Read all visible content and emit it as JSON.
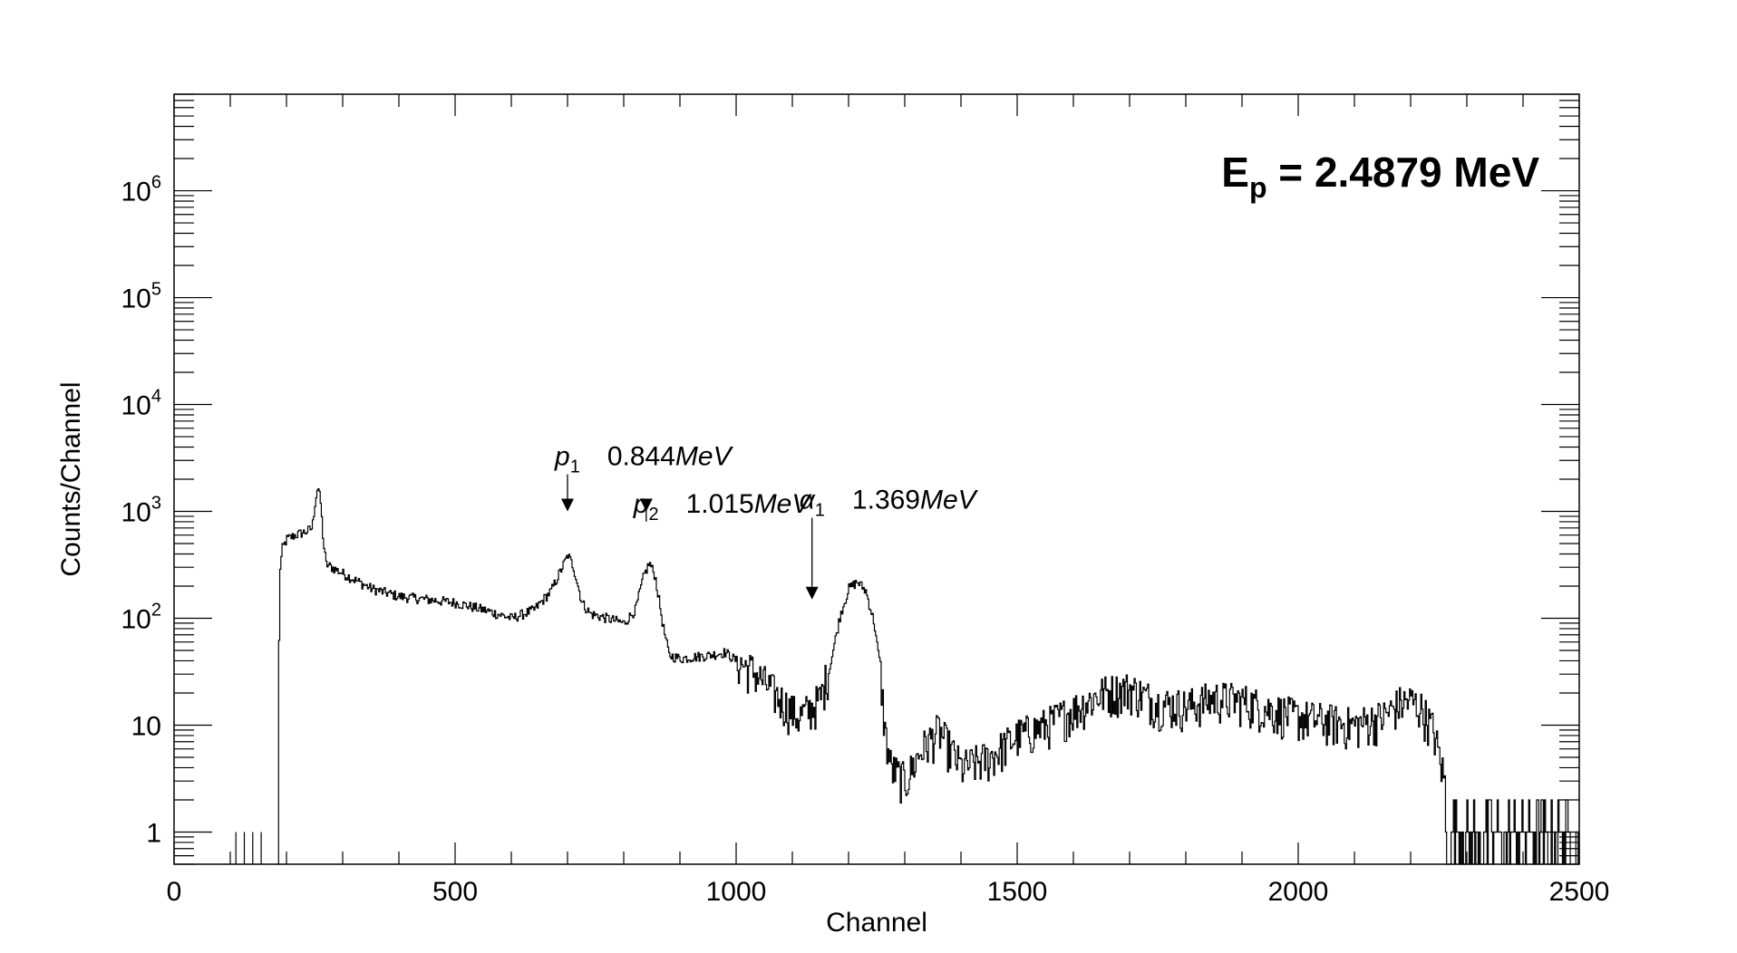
{
  "chart_data": {
    "type": "line",
    "title": "",
    "xlabel": "Channel",
    "ylabel": "Counts/Channel",
    "xlim": [
      0,
      2500
    ],
    "ylim": [
      0.5,
      8000000
    ],
    "y_scale": "log",
    "x_ticks": [
      "0",
      "500",
      "1000",
      "1500",
      "2000",
      "2500"
    ],
    "y_ticks": [
      {
        "base": "1",
        "exp": ""
      },
      {
        "base": "10",
        "exp": ""
      },
      {
        "base": "10",
        "exp": "2"
      },
      {
        "base": "10",
        "exp": "3"
      },
      {
        "base": "10",
        "exp": "4"
      },
      {
        "base": "10",
        "exp": "5"
      },
      {
        "base": "10",
        "exp": "6"
      }
    ],
    "grid": false,
    "beam_label": {
      "main": "E",
      "sub": "p",
      "rest": " = 2.4879 MeV"
    },
    "annotations": [
      {
        "symbol": "p",
        "sub": "1",
        "energy": "0.844",
        "unit": "MeV",
        "x": 700,
        "y_top": 2500,
        "y_tip": 1000
      },
      {
        "symbol": "p",
        "sub": "2",
        "energy": "1.015",
        "unit": "MeV",
        "x": 840,
        "y_top": 900,
        "y_tip": 1000
      },
      {
        "symbol": "α",
        "sub": "1",
        "energy": "1.369",
        "unit": "MeV",
        "x": 1135,
        "y_top": 980,
        "y_tip": 150
      }
    ],
    "series": [
      {
        "values": [
          [
            110,
            1
          ],
          [
            125,
            1
          ],
          [
            140,
            1
          ],
          [
            155,
            1
          ],
          [
            185,
            0.5
          ],
          [
            186,
            60
          ],
          [
            188,
            300
          ],
          [
            192,
            450
          ],
          [
            200,
            550
          ],
          [
            215,
            600
          ],
          [
            235,
            650
          ],
          [
            245,
            700
          ],
          [
            250,
            1200
          ],
          [
            255,
            1750
          ],
          [
            260,
            1200
          ],
          [
            265,
            500
          ],
          [
            270,
            320
          ],
          [
            290,
            280
          ],
          [
            320,
            230
          ],
          [
            350,
            190
          ],
          [
            400,
            160
          ],
          [
            450,
            150
          ],
          [
            500,
            140
          ],
          [
            550,
            120
          ],
          [
            600,
            100
          ],
          [
            640,
            120
          ],
          [
            670,
            180
          ],
          [
            690,
            300
          ],
          [
            700,
            390
          ],
          [
            710,
            300
          ],
          [
            725,
            140
          ],
          [
            740,
            110
          ],
          [
            770,
            100
          ],
          [
            800,
            90
          ],
          [
            820,
            120
          ],
          [
            835,
            250
          ],
          [
            845,
            330
          ],
          [
            855,
            250
          ],
          [
            870,
            80
          ],
          [
            880,
            45
          ],
          [
            900,
            42
          ],
          [
            950,
            45
          ],
          [
            980,
            48
          ],
          [
            1000,
            40
          ],
          [
            1030,
            32
          ],
          [
            1060,
            22
          ],
          [
            1090,
            15
          ],
          [
            1110,
            12
          ],
          [
            1130,
            14
          ],
          [
            1150,
            18
          ],
          [
            1170,
            45
          ],
          [
            1185,
            110
          ],
          [
            1200,
            190
          ],
          [
            1215,
            220
          ],
          [
            1230,
            180
          ],
          [
            1245,
            90
          ],
          [
            1255,
            35
          ],
          [
            1265,
            8
          ],
          [
            1275,
            4
          ],
          [
            1300,
            3
          ],
          [
            1330,
            6
          ],
          [
            1360,
            9
          ],
          [
            1400,
            4
          ],
          [
            1450,
            5
          ],
          [
            1500,
            8
          ],
          [
            1550,
            10
          ],
          [
            1600,
            14
          ],
          [
            1650,
            20
          ],
          [
            1700,
            22
          ],
          [
            1750,
            16
          ],
          [
            1800,
            15
          ],
          [
            1850,
            18
          ],
          [
            1900,
            17
          ],
          [
            1950,
            14
          ],
          [
            2000,
            12
          ],
          [
            2050,
            11
          ],
          [
            2100,
            10
          ],
          [
            2150,
            12
          ],
          [
            2180,
            16
          ],
          [
            2200,
            17
          ],
          [
            2220,
            14
          ],
          [
            2240,
            9
          ],
          [
            2260,
            3
          ],
          [
            2280,
            1.5
          ],
          [
            2300,
            1.2
          ],
          [
            2400,
            1
          ],
          [
            2500,
            1
          ]
        ]
      }
    ]
  }
}
